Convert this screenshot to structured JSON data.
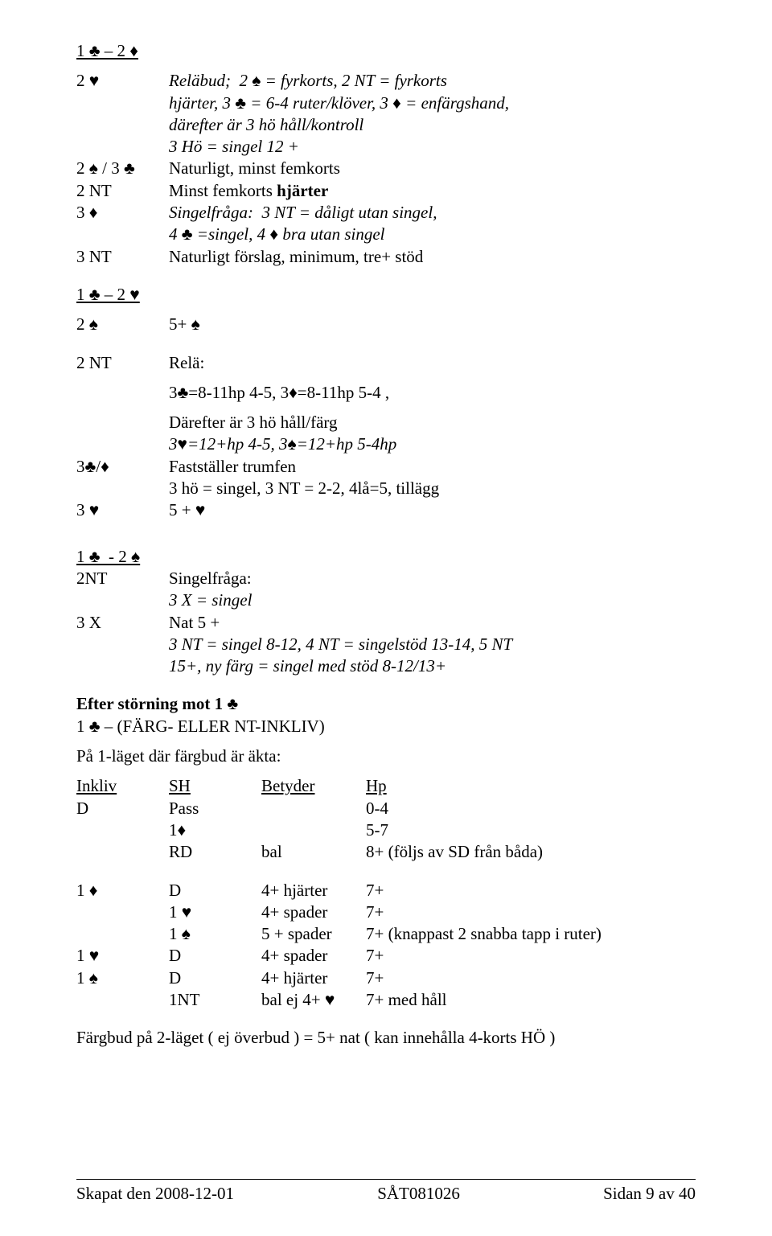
{
  "header": {
    "title": "1 ♣ – 2 ♦"
  },
  "sec1": {
    "r1_bid": "2 ♥",
    "r1_l1": "Reläbud;  2 ♠ = fyrkorts, 2 NT = fyrkorts",
    "r1_l2": "hjärter, 3 ♣ = 6-4 ruter/klöver, 3 ♦ = enfärgshand,",
    "r1_l3": "därefter är 3 hö håll/kontroll",
    "r1_l4": "3 Hö = singel 12 +",
    "r2_bid": "2 ♠ / 3 ♣",
    "r2_desc": "Naturligt, minst femkorts",
    "r3_bid": "2 NT",
    "r3_desc_pre": "Minst femkorts ",
    "r3_desc_bold": "hjärter",
    "r4_bid": "3 ♦",
    "r4_l1": "Singelfråga:  3 NT = dåligt utan singel,",
    "r4_l2": "4 ♣ =singel, 4 ♦ bra utan singel",
    "r5_bid": "3 NT",
    "r5_desc": "Naturligt förslag, minimum, tre+ stöd"
  },
  "sec2": {
    "title": "1 ♣ – 2 ♥",
    "r1_bid": "2 ♠",
    "r1_desc": "5+ ♠",
    "r2_bid": "2 NT",
    "r2_desc": "Relä:",
    "r2_l1": "3♣=8-11hp 4-5, 3♦=8-11hp 5-4 ,",
    "r2_l2": "Därefter är 3 hö håll/färg",
    "r2_l3": "3♥=12+hp 4-5, 3♠=12+hp 5-4hp",
    "r3_bid": "3♣/♦",
    "r3_l1": "Fastställer trumfen",
    "r3_l2": "3 hö = singel, 3 NT = 2-2, 4lå=5, tillägg",
    "r4_bid": "3 ♥",
    "r4_desc": "5 + ♥"
  },
  "sec3": {
    "title": "1 ♣  - 2 ♠",
    "r1_bid": "2NT",
    "r1_l1": "Singelfråga:",
    "r1_l2": "3 X = singel",
    "r2_bid": "3 X",
    "r2_l1": "Nat 5 +",
    "r2_l2": "3 NT = singel 8-12, 4 NT = singelstöd 13-14, 5 NT",
    "r2_l3": "15+, ny färg = singel med stöd 8-12/13+"
  },
  "sec4": {
    "title": "Efter störning mot 1 ♣",
    "sub": "1 ♣ – (FÄRG- ELLER NT-INKLIV)",
    "line2": "På 1-läget där färgbud är äkta:",
    "th1": "Inkliv",
    "th2": "SH",
    "th3": "Betyder",
    "th4": "Hp",
    "rows": [
      {
        "c1": "D",
        "c2": "Pass",
        "c3": "",
        "c4": "0-4"
      },
      {
        "c1": "",
        "c2": "1♦",
        "c3": "",
        "c4": "5-7"
      },
      {
        "c1": "",
        "c2": "RD",
        "c3": "bal",
        "c4": "8+ (följs av SD från båda)"
      }
    ],
    "rows2": [
      {
        "c1": "1 ♦",
        "c2": "D",
        "c3": "4+ hjärter",
        "c4": "7+"
      },
      {
        "c1": "",
        "c2": "1 ♥",
        "c3": "4+ spader",
        "c4": "7+"
      },
      {
        "c1": "",
        "c2": "1 ♠",
        "c3": "5 + spader",
        "c4": "7+ (knappast 2 snabba tapp i ruter)"
      },
      {
        "c1": "1 ♥",
        "c2": "D",
        "c3": "4+ spader",
        "c4": "7+"
      },
      {
        "c1": "1 ♠",
        "c2": "D",
        "c3": "4+ hjärter",
        "c4": "7+"
      },
      {
        "c1": "",
        "c2": "1NT",
        "c3": "bal ej 4+ ♥",
        "c4": "7+ med håll"
      }
    ],
    "endline": "Färgbud på 2-läget ( ej överbud ) = 5+ nat ( kan innehålla 4-korts HÖ )"
  },
  "footer": {
    "left": "Skapat den 2008-12-01",
    "center": "SÅT081026",
    "right": "Sidan 9 av 40"
  }
}
